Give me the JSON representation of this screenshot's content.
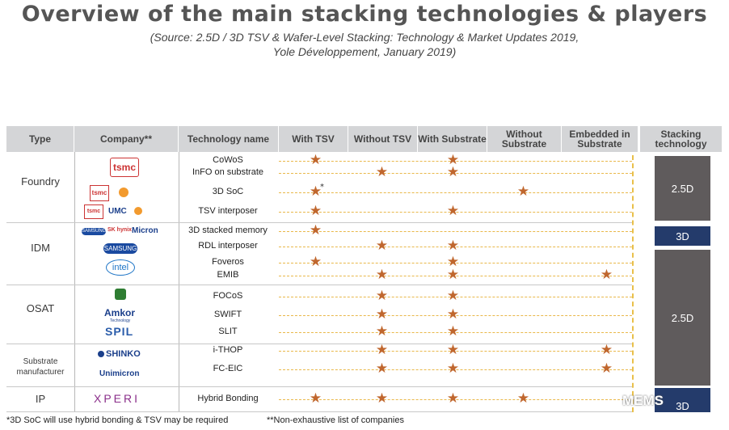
{
  "title": "Overview of the main stacking technologies & players",
  "source_line1": "(Source: 2.5D / 3D TSV & Wafer-Level Stacking: Technology & Market Updates 2019,",
  "source_line2": "Yole Développement, January 2019)",
  "headers": {
    "type": "Type",
    "company": "Company**",
    "tech": "Technology name",
    "with_tsv": "With TSV",
    "without_tsv": "Without TSV",
    "with_substrate": "With Substrate",
    "without_substrate": "Without Substrate",
    "embedded": "Embedded in Substrate",
    "stacking": "Stacking technology"
  },
  "groups": [
    {
      "name": "Foundry"
    },
    {
      "name": "IDM"
    },
    {
      "name": "OSAT"
    },
    {
      "name": "Substrate manufacturer"
    },
    {
      "name": "IP"
    }
  ],
  "rows": [
    {
      "tech": "CoWoS",
      "marks": [
        1,
        0,
        1,
        0,
        0
      ]
    },
    {
      "tech": "InFO on substrate",
      "marks": [
        0,
        1,
        1,
        0,
        0
      ]
    },
    {
      "tech": "3D SoC",
      "marks": [
        1,
        0,
        0,
        1,
        0
      ],
      "footnote": "*"
    },
    {
      "tech": "TSV interposer",
      "marks": [
        1,
        0,
        1,
        0,
        0
      ]
    },
    {
      "tech": "3D stacked memory",
      "marks": [
        1,
        0,
        0,
        0,
        0
      ]
    },
    {
      "tech": "RDL interposer",
      "marks": [
        0,
        1,
        1,
        0,
        0
      ]
    },
    {
      "tech": "Foveros",
      "marks": [
        1,
        0,
        1,
        0,
        0
      ]
    },
    {
      "tech": "EMIB",
      "marks": [
        0,
        1,
        1,
        0,
        1
      ]
    },
    {
      "tech": "FOCoS",
      "marks": [
        0,
        1,
        1,
        0,
        0
      ]
    },
    {
      "tech": "SWIFT",
      "marks": [
        0,
        1,
        1,
        0,
        0
      ]
    },
    {
      "tech": "SLIT",
      "marks": [
        0,
        1,
        1,
        0,
        0
      ]
    },
    {
      "tech": "i-THOP",
      "marks": [
        0,
        1,
        1,
        0,
        1
      ]
    },
    {
      "tech": "FC-EIC",
      "marks": [
        0,
        1,
        1,
        0,
        1
      ]
    },
    {
      "tech": "Hybrid Bonding",
      "marks": [
        1,
        1,
        1,
        1,
        0
      ]
    }
  ],
  "stacking_blocks": [
    {
      "label": "2.5D",
      "color": "#5f5b5c"
    },
    {
      "label": "3D",
      "color": "#243b6b"
    },
    {
      "label": "2.5D",
      "color": "#5f5b5c"
    },
    {
      "label": "3D",
      "color": "#243b6b"
    }
  ],
  "logos": {
    "tsmc": "tsmc",
    "hynix": "SK hynix",
    "micron": "Micron",
    "samsung": "SAMSUNG",
    "intel": "intel",
    "amkor": "Amkor",
    "amkor_sub": "Technology",
    "spil": "SPIL",
    "shinko": "SHINKO",
    "unimicron": "Unimicron",
    "xperi": "XPERI",
    "umc": "UMC"
  },
  "footnote_left": "*3D SoC will use hybrid bonding & TSV may be required",
  "footnote_right": "**Non-exhaustive list of companies",
  "watermark": "MEMS"
}
